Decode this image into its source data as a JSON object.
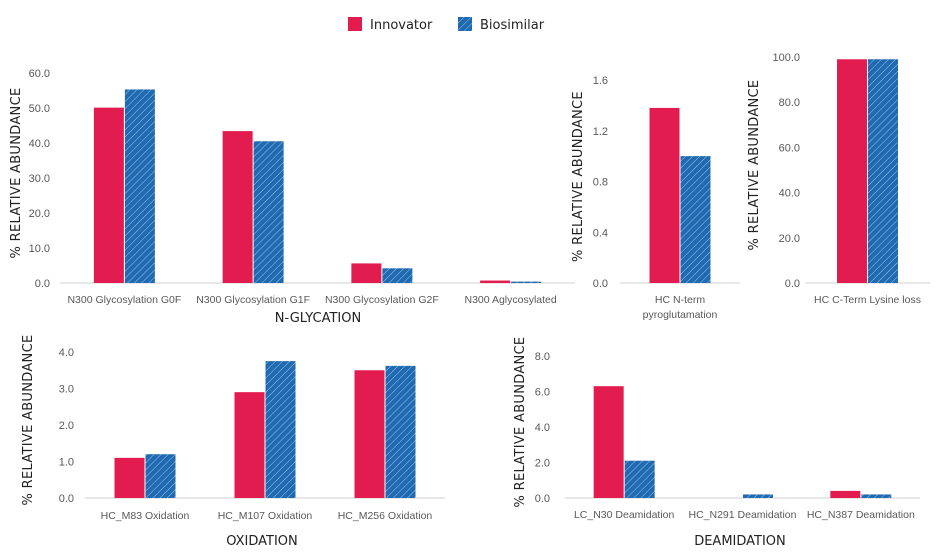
{
  "legend": {
    "placement": "top-center",
    "items": [
      {
        "name": "Innovator",
        "color": "#E31C4F",
        "pattern": "solid"
      },
      {
        "name": "Biosimilar",
        "color": "#1F6AB0",
        "pattern": "hatched"
      }
    ]
  },
  "chart_data": [
    {
      "type": "bar",
      "title": "N-GLYCATION",
      "ylabel": "% RELATIVE ABUNDANCE",
      "ylim": [
        0,
        60
      ],
      "yticks": [
        "0.0",
        "10.0",
        "20.0",
        "30.0",
        "40.0",
        "50.0",
        "60.0"
      ],
      "categories": [
        "N300 Glycosylation G0F",
        "N300 Glycosylation G1F",
        "N300 Glycosylation G2F",
        "N300 Aglycosylated"
      ],
      "series": [
        {
          "name": "Innovator",
          "values": [
            50.1,
            43.4,
            5.6,
            0.7
          ]
        },
        {
          "name": "Biosimilar",
          "values": [
            55.3,
            40.5,
            4.2,
            0.4
          ]
        }
      ],
      "grid": false
    },
    {
      "type": "bar",
      "title": "",
      "ylabel": "% RELATIVE ABUNDANCE",
      "ylim": [
        0,
        1.6
      ],
      "yticks": [
        "0.0",
        "0.4",
        "0.8",
        "1.2",
        "1.6"
      ],
      "categories": [
        [
          "HC N-term",
          "pyroglutamation"
        ]
      ],
      "series": [
        {
          "name": "Innovator",
          "values": [
            1.38
          ]
        },
        {
          "name": "Biosimilar",
          "values": [
            1.0
          ]
        }
      ],
      "grid": false
    },
    {
      "type": "bar",
      "title": "",
      "ylabel": "% RELATIVE ABUNDANCE",
      "ylim": [
        0,
        100
      ],
      "yticks": [
        "0.0",
        "20.0",
        "40.0",
        "60.0",
        "80.0",
        "100.0"
      ],
      "categories": [
        "HC C-Term Lysine loss"
      ],
      "series": [
        {
          "name": "Innovator",
          "values": [
            99.0
          ]
        },
        {
          "name": "Biosimilar",
          "values": [
            99.0
          ]
        }
      ],
      "grid": false
    },
    {
      "type": "bar",
      "title": "OXIDATION",
      "ylabel": "% RELATIVE ABUNDANCE",
      "ylim": [
        0,
        4
      ],
      "yticks": [
        "0.0",
        "1.0",
        "2.0",
        "3.0",
        "4.0"
      ],
      "categories": [
        "HC_M83 Oxidation",
        "HC_M107 Oxidation",
        "HC_M256 Oxidation"
      ],
      "series": [
        {
          "name": "Innovator",
          "values": [
            1.1,
            2.9,
            3.5
          ]
        },
        {
          "name": "Biosimilar",
          "values": [
            1.2,
            3.75,
            3.62
          ]
        }
      ],
      "grid": false
    },
    {
      "type": "bar",
      "title": "DEAMIDATION",
      "ylabel": "% RELATIVE ABUNDANCE",
      "ylim": [
        0,
        8
      ],
      "yticks": [
        "0.0",
        "2.0",
        "4.0",
        "6.0",
        "8.0"
      ],
      "categories": [
        "LC_N30 Deamidation",
        "HC_N291 Deamidation",
        "HC_N387 Deamidation"
      ],
      "series": [
        {
          "name": "Innovator",
          "values": [
            6.3,
            0.0,
            0.4
          ]
        },
        {
          "name": "Biosimilar",
          "values": [
            2.1,
            0.2,
            0.2
          ]
        }
      ],
      "grid": false
    }
  ]
}
